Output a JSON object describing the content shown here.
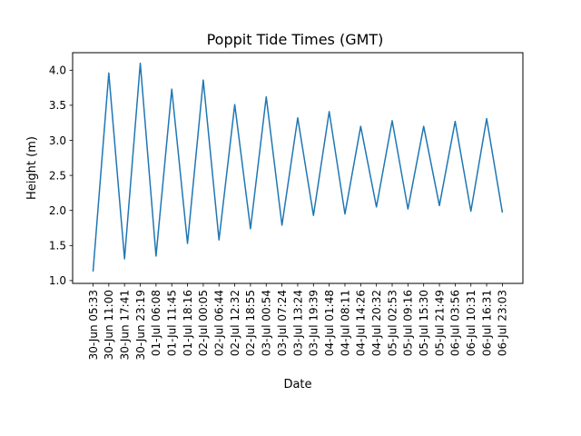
{
  "chart_data": {
    "type": "line",
    "title": "Poppit Tide Times (GMT)",
    "xlabel": "Date",
    "ylabel": "Height (m)",
    "ylim": [
      0.96,
      4.25
    ],
    "yticks": [
      "1.0",
      "1.5",
      "2.0",
      "2.5",
      "3.0",
      "3.5",
      "4.0"
    ],
    "grid": false,
    "legend": "none",
    "line_color": "#1f77b4",
    "series": [
      {
        "x": [
          "30-Jun 05:33",
          "30-Jun 11:00",
          "30-Jun 17:41",
          "30-Jun 23:19",
          "01-Jul 06:08",
          "01-Jul 11:45",
          "01-Jul 18:16",
          "02-Jul 00:05",
          "02-Jul 06:44",
          "02-Jul 12:32",
          "02-Jul 18:55",
          "03-Jul 00:54",
          "03-Jul 07:24",
          "03-Jul 13:24",
          "03-Jul 19:39",
          "04-Jul 01:48",
          "04-Jul 08:11",
          "04-Jul 14:26",
          "04-Jul 20:32",
          "05-Jul 02:53",
          "05-Jul 09:16",
          "05-Jul 15:30",
          "05-Jul 21:49",
          "06-Jul 03:56",
          "06-Jul 10:31",
          "06-Jul 16:31",
          "06-Jul 23:03"
        ],
        "values": [
          1.13,
          3.96,
          1.31,
          4.1,
          1.35,
          3.73,
          1.53,
          3.86,
          1.58,
          3.51,
          1.74,
          3.62,
          1.79,
          3.32,
          1.93,
          3.41,
          1.95,
          3.2,
          2.05,
          3.28,
          2.02,
          3.2,
          2.07,
          3.27,
          1.99,
          3.31,
          1.97
        ]
      }
    ]
  }
}
